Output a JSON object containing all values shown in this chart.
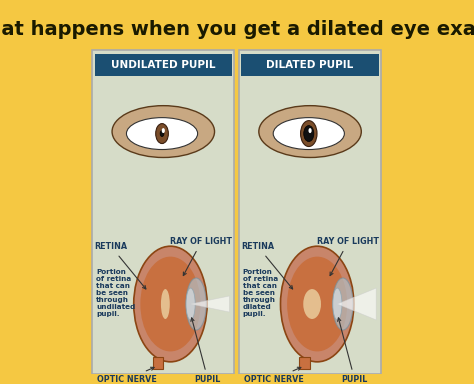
{
  "title": "What happens when you get a dilated eye exam?",
  "title_fontsize": 14,
  "title_color": "#1a1a00",
  "title_bg": "#f5c842",
  "panel_bg": "#d6dcc8",
  "panel_border": "#888888",
  "header_bg": "#1b4f72",
  "header_text_color": "#ffffff",
  "left_header": "UNDILATED PUPIL",
  "right_header": "DILATED PUPIL",
  "outer_bg": "#f5c842",
  "label_color": "#1a3a5c",
  "labels_left": [
    "RETINA",
    "RAY OF LIGHT",
    "OPTIC NERVE",
    "PUPIL"
  ],
  "labels_right": [
    "RETINA",
    "RAY OF LIGHT",
    "OPTIC NERVE",
    "PUPIL"
  ],
  "note_undilated": "Portion\nof retina\nthat can\nbe seen\nthrough\nundilated\npupil.",
  "note_dilated": "Portion\nof retina\nthat can\nbe seen\nthrough\ndilated\npupil."
}
